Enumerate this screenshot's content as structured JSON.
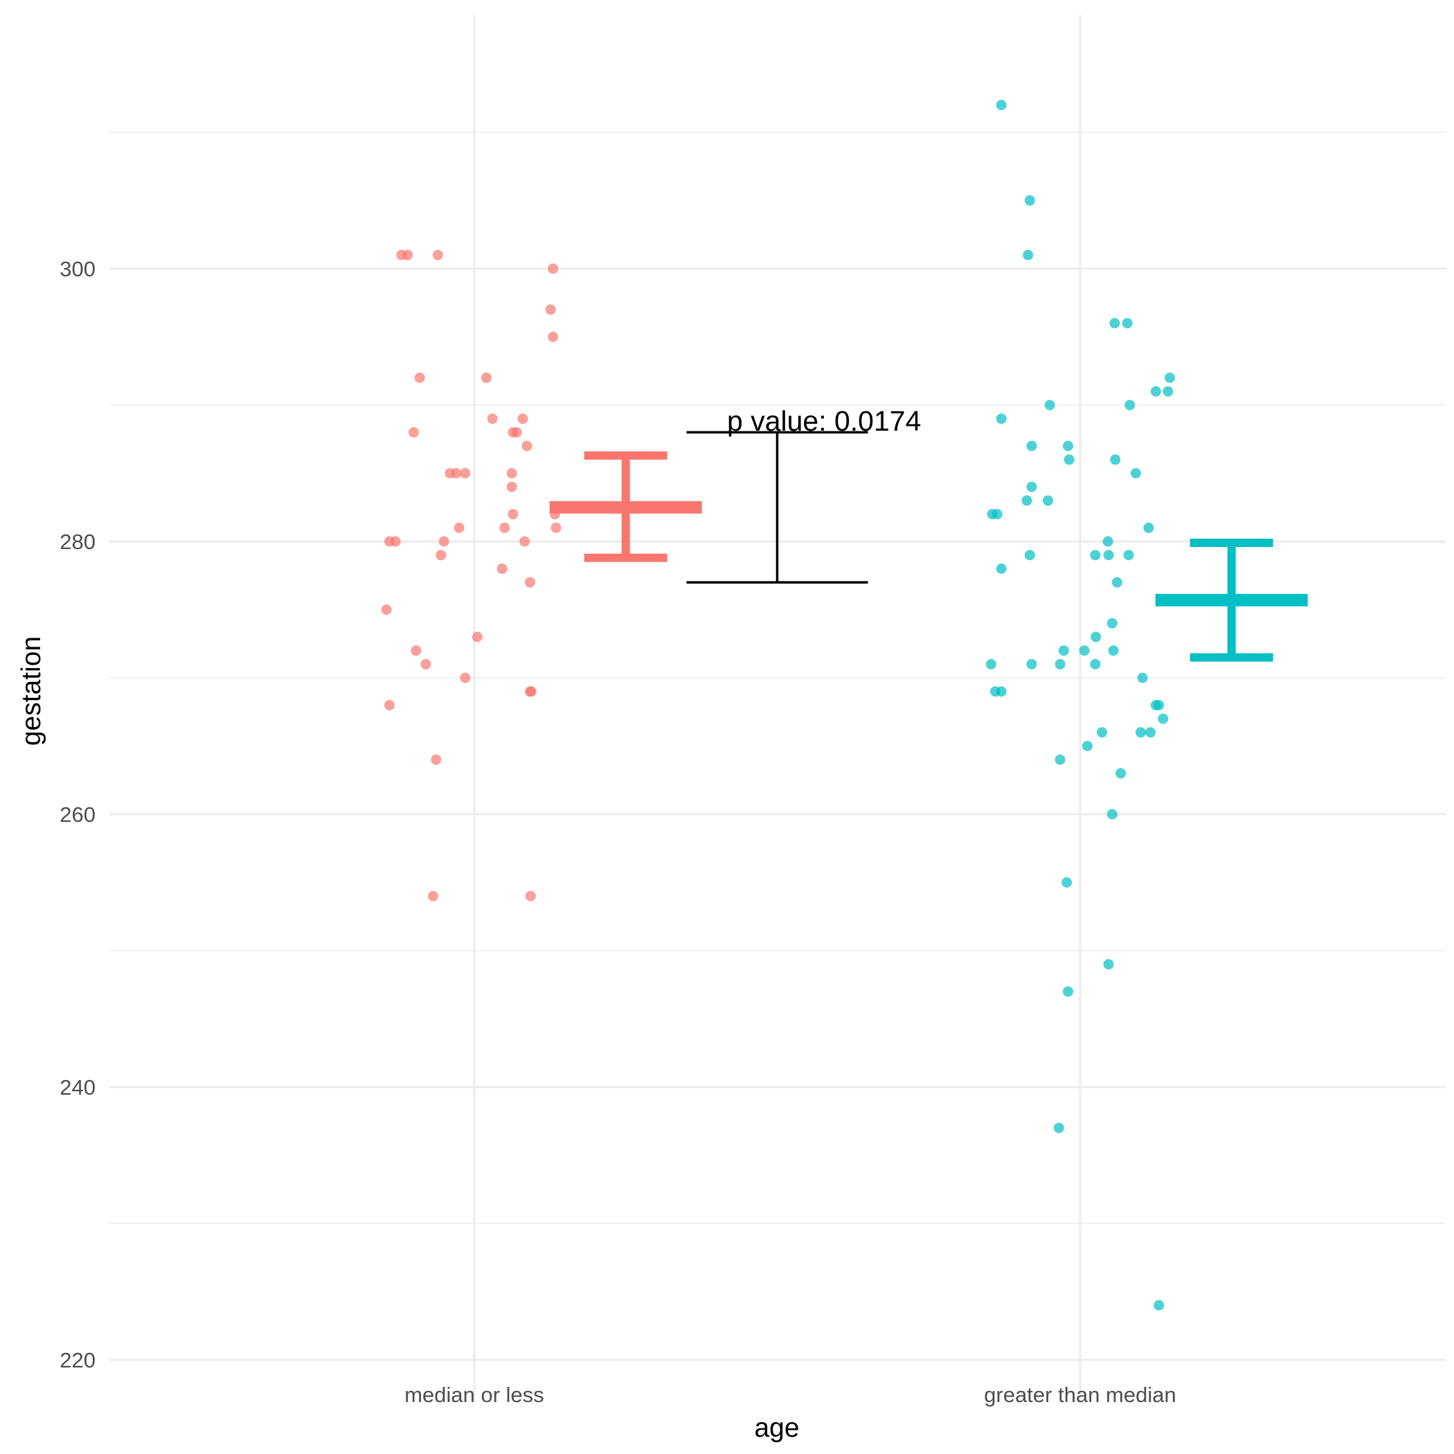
{
  "chart_data": {
    "type": "scatter",
    "xlabel": "age",
    "ylabel": "gestation",
    "categories": [
      "median or less",
      "greater than median"
    ],
    "ylim": [
      218,
      316
    ],
    "yticks": [
      220,
      240,
      260,
      280,
      300
    ],
    "grid": true,
    "legend": "none",
    "annotation": {
      "text": "p value: 0.0174",
      "bracket_y_top": 288,
      "bracket_y_bottom": 277
    },
    "series": [
      {
        "color": "#F8766D",
        "summary": {
          "mean": 282.5,
          "lower": 278.8,
          "upper": 286.3
        },
        "points": [
          {
            "dx": -0.12,
            "y": 301
          },
          {
            "dx": -0.11,
            "y": 301
          },
          {
            "dx": -0.06,
            "y": 301
          },
          {
            "dx": 0.13,
            "y": 300
          },
          {
            "dx": 0.126,
            "y": 297
          },
          {
            "dx": 0.13,
            "y": 295
          },
          {
            "dx": -0.09,
            "y": 292
          },
          {
            "dx": 0.02,
            "y": 292
          },
          {
            "dx": 0.03,
            "y": 289
          },
          {
            "dx": 0.08,
            "y": 289
          },
          {
            "dx": -0.1,
            "y": 288
          },
          {
            "dx": 0.064,
            "y": 288
          },
          {
            "dx": 0.07,
            "y": 288
          },
          {
            "dx": 0.087,
            "y": 287
          },
          {
            "dx": -0.04,
            "y": 285
          },
          {
            "dx": -0.03,
            "y": 285
          },
          {
            "dx": -0.015,
            "y": 285
          },
          {
            "dx": 0.062,
            "y": 285
          },
          {
            "dx": 0.062,
            "y": 284
          },
          {
            "dx": 0.064,
            "y": 282
          },
          {
            "dx": 0.133,
            "y": 282
          },
          {
            "dx": -0.025,
            "y": 281
          },
          {
            "dx": 0.05,
            "y": 281
          },
          {
            "dx": 0.135,
            "y": 281
          },
          {
            "dx": -0.14,
            "y": 280
          },
          {
            "dx": -0.13,
            "y": 280
          },
          {
            "dx": -0.05,
            "y": 280
          },
          {
            "dx": 0.083,
            "y": 280
          },
          {
            "dx": -0.055,
            "y": 279
          },
          {
            "dx": 0.046,
            "y": 278
          },
          {
            "dx": 0.092,
            "y": 277
          },
          {
            "dx": -0.145,
            "y": 275
          },
          {
            "dx": 0.005,
            "y": 273
          },
          {
            "dx": -0.096,
            "y": 272
          },
          {
            "dx": -0.08,
            "y": 271
          },
          {
            "dx": -0.015,
            "y": 270
          },
          {
            "dx": 0.092,
            "y": 269
          },
          {
            "dx": 0.094,
            "y": 269
          },
          {
            "dx": -0.14,
            "y": 268
          },
          {
            "dx": -0.063,
            "y": 264
          },
          {
            "dx": -0.068,
            "y": 254
          },
          {
            "dx": 0.093,
            "y": 254
          }
        ]
      },
      {
        "color": "#00BFC4",
        "summary": {
          "mean": 275.7,
          "lower": 271.5,
          "upper": 279.9
        },
        "points": [
          {
            "dx": -0.13,
            "y": 312
          },
          {
            "dx": -0.083,
            "y": 305
          },
          {
            "dx": -0.086,
            "y": 301
          },
          {
            "dx": 0.057,
            "y": 296
          },
          {
            "dx": 0.078,
            "y": 296
          },
          {
            "dx": 0.148,
            "y": 292
          },
          {
            "dx": 0.125,
            "y": 291
          },
          {
            "dx": 0.145,
            "y": 291
          },
          {
            "dx": -0.05,
            "y": 290
          },
          {
            "dx": 0.082,
            "y": 290
          },
          {
            "dx": -0.13,
            "y": 289
          },
          {
            "dx": -0.08,
            "y": 287
          },
          {
            "dx": -0.02,
            "y": 287
          },
          {
            "dx": -0.018,
            "y": 286
          },
          {
            "dx": 0.058,
            "y": 286
          },
          {
            "dx": 0.092,
            "y": 285
          },
          {
            "dx": -0.08,
            "y": 284
          },
          {
            "dx": -0.088,
            "y": 283
          },
          {
            "dx": -0.053,
            "y": 283
          },
          {
            "dx": -0.145,
            "y": 282
          },
          {
            "dx": -0.137,
            "y": 282
          },
          {
            "dx": 0.113,
            "y": 281
          },
          {
            "dx": 0.046,
            "y": 280
          },
          {
            "dx": -0.13,
            "y": 278
          },
          {
            "dx": 0.025,
            "y": 279
          },
          {
            "dx": 0.047,
            "y": 279
          },
          {
            "dx": 0.08,
            "y": 279
          },
          {
            "dx": -0.083,
            "y": 279
          },
          {
            "dx": 0.061,
            "y": 277
          },
          {
            "dx": 0.053,
            "y": 274
          },
          {
            "dx": 0.026,
            "y": 273
          },
          {
            "dx": 0.007,
            "y": 272
          },
          {
            "dx": -0.027,
            "y": 272
          },
          {
            "dx": 0.055,
            "y": 272
          },
          {
            "dx": -0.147,
            "y": 271
          },
          {
            "dx": -0.08,
            "y": 271
          },
          {
            "dx": -0.033,
            "y": 271
          },
          {
            "dx": 0.025,
            "y": 271
          },
          {
            "dx": 0.103,
            "y": 270
          },
          {
            "dx": -0.14,
            "y": 269
          },
          {
            "dx": -0.13,
            "y": 269
          },
          {
            "dx": 0.125,
            "y": 268
          },
          {
            "dx": 0.13,
            "y": 268
          },
          {
            "dx": 0.137,
            "y": 267
          },
          {
            "dx": 0.036,
            "y": 266
          },
          {
            "dx": 0.1,
            "y": 266
          },
          {
            "dx": 0.116,
            "y": 266
          },
          {
            "dx": 0.012,
            "y": 265
          },
          {
            "dx": -0.033,
            "y": 264
          },
          {
            "dx": 0.067,
            "y": 263
          },
          {
            "dx": 0.053,
            "y": 260
          },
          {
            "dx": -0.022,
            "y": 255
          },
          {
            "dx": 0.047,
            "y": 249
          },
          {
            "dx": -0.02,
            "y": 247
          },
          {
            "dx": -0.035,
            "y": 237
          },
          {
            "dx": 0.13,
            "y": 224
          }
        ]
      }
    ]
  }
}
